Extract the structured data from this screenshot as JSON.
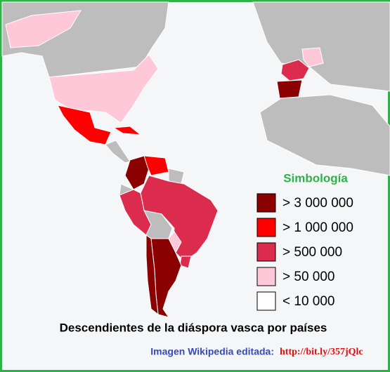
{
  "legend": {
    "title": "Simbología",
    "items": [
      {
        "label": "> 3 000 000",
        "color": "#8b0000"
      },
      {
        "label": "> 1 000 000",
        "color": "#ff0000"
      },
      {
        "label": "> 500 000",
        "color": "#dc2c4e"
      },
      {
        "label": "> 50 000",
        "color": "#ffc8d8"
      },
      {
        "label": "< 10 000",
        "color": "#ffffff"
      }
    ]
  },
  "caption": "Descendientes de la diáspora vasca por países",
  "credit": {
    "text": "Imagen Wikipedia editada:",
    "link": "http://bit.ly/357jQlc"
  }
}
